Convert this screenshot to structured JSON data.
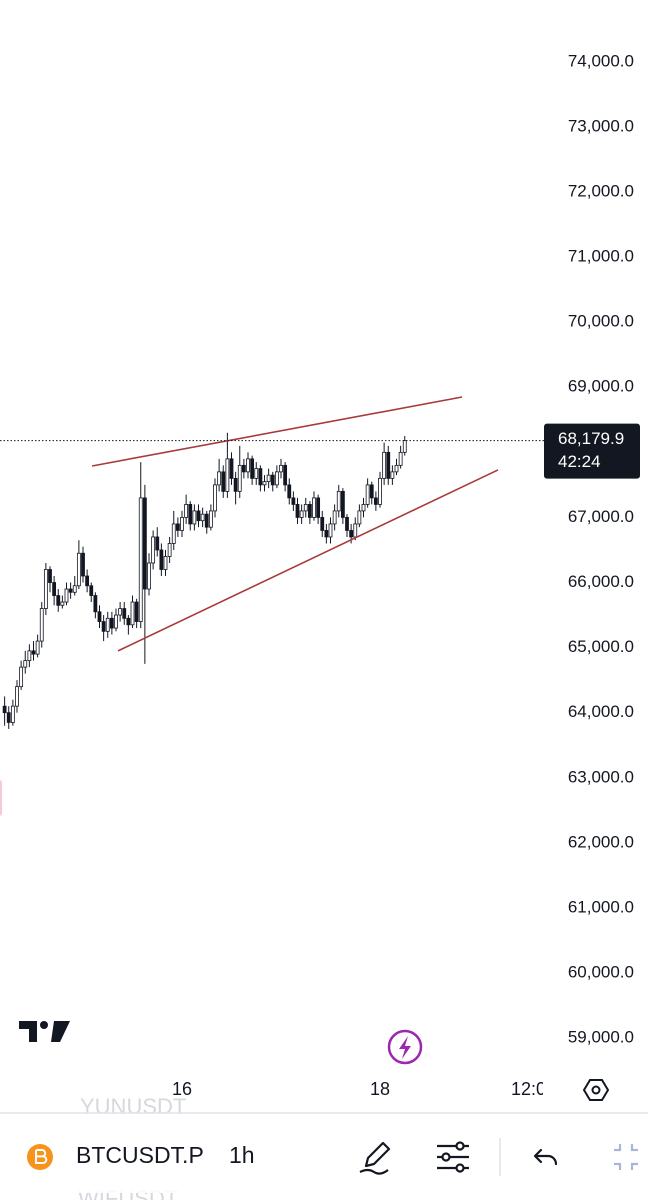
{
  "chart_data": {
    "type": "candlestick",
    "x": [
      -43,
      -42,
      -41,
      -40,
      -39,
      -38,
      -37,
      -36,
      -35,
      -34,
      -33,
      -32,
      -31,
      -30,
      -29,
      -28,
      -27,
      -26,
      -25,
      -24,
      -23,
      -22,
      -21,
      -20,
      -19,
      -18,
      -17,
      -16,
      -15,
      -14,
      -13,
      -12,
      -11,
      -10,
      -9,
      -8,
      -7,
      -6,
      -5,
      -4,
      -3,
      -2,
      -1,
      0,
      1,
      2,
      3,
      4,
      5,
      6,
      7,
      8,
      9,
      10,
      11,
      12,
      13,
      14,
      15,
      16,
      17,
      18,
      19,
      20,
      21,
      22,
      23,
      24,
      25,
      26,
      27,
      28,
      29,
      30,
      31,
      32,
      33,
      34,
      35,
      36,
      37,
      38,
      39,
      40,
      41,
      42,
      43,
      44,
      45,
      46,
      47,
      48,
      49,
      50,
      51,
      52,
      53,
      54
    ],
    "open": [
      64100,
      64000,
      63850,
      64100,
      64400,
      64700,
      64800,
      64950,
      64900,
      65100,
      65600,
      66200,
      66000,
      65800,
      65650,
      65700,
      65900,
      65850,
      65950,
      66450,
      66100,
      65950,
      65800,
      65550,
      65400,
      65250,
      65450,
      65300,
      65500,
      65600,
      65450,
      65350,
      65700,
      65400,
      67300,
      65900,
      66300,
      66700,
      66500,
      66200,
      66400,
      66600,
      66900,
      66800,
      67000,
      67200,
      66900,
      67100,
      66950,
      67050,
      66850,
      67100,
      67500,
      67700,
      67400,
      67900,
      67600,
      67400,
      67800,
      67700,
      67900,
      67600,
      67750,
      67500,
      67550,
      67650,
      67500,
      67700,
      67800,
      67500,
      67300,
      67200,
      67000,
      67100,
      67200,
      67000,
      67300,
      67000,
      66800,
      66700,
      66900,
      67100,
      67400,
      67000,
      66800,
      66700,
      66900,
      67100,
      67200,
      67500,
      67300,
      67200,
      67600,
      68000,
      67600,
      67700,
      67800,
      68000
    ],
    "high": [
      64250,
      64100,
      64200,
      64500,
      64800,
      64950,
      65050,
      65100,
      65200,
      65700,
      66300,
      66250,
      66100,
      65900,
      65800,
      66000,
      66000,
      66100,
      66650,
      66550,
      66200,
      66000,
      65850,
      65650,
      65500,
      65550,
      65550,
      65600,
      65700,
      65700,
      65500,
      65800,
      65750,
      67850,
      67500,
      66450,
      66800,
      66850,
      66600,
      66500,
      66700,
      67100,
      67000,
      67100,
      67350,
      67250,
      67200,
      67200,
      67150,
      67100,
      67200,
      67600,
      67900,
      67800,
      68300,
      68000,
      67700,
      68100,
      67900,
      68000,
      67950,
      67850,
      67800,
      67650,
      67750,
      67700,
      67800,
      67900,
      67850,
      67600,
      67400,
      67300,
      67200,
      67300,
      67250,
      67400,
      67350,
      67100,
      66900,
      67000,
      67200,
      67500,
      67450,
      67050,
      66900,
      67000,
      67200,
      67300,
      67600,
      67550,
      67400,
      67700,
      68150,
      68100,
      67800,
      67900,
      68100,
      68250
    ],
    "low": [
      63800,
      63750,
      63800,
      64000,
      64350,
      64600,
      64700,
      64800,
      64850,
      65000,
      65500,
      65850,
      65650,
      65550,
      65600,
      65650,
      65750,
      65800,
      65900,
      66000,
      65850,
      65700,
      65450,
      65300,
      65100,
      65150,
      65200,
      65250,
      65400,
      65350,
      65200,
      65300,
      65300,
      65300,
      64750,
      65800,
      66200,
      66400,
      66100,
      66100,
      66300,
      66500,
      66700,
      66700,
      66900,
      66800,
      66800,
      66850,
      66850,
      66750,
      66800,
      67000,
      67400,
      67300,
      67300,
      67500,
      67200,
      67300,
      67600,
      67600,
      67500,
      67500,
      67400,
      67400,
      67450,
      67400,
      67450,
      67600,
      67400,
      67200,
      67100,
      66900,
      66900,
      67000,
      66900,
      66950,
      66900,
      66700,
      66600,
      66600,
      66800,
      67000,
      66900,
      66700,
      66600,
      66650,
      66850,
      67000,
      67150,
      67200,
      67100,
      67150,
      67500,
      67500,
      67500,
      67650,
      67750,
      67950
    ],
    "close": [
      64000,
      63850,
      64100,
      64400,
      64700,
      64800,
      64950,
      64900,
      65100,
      65600,
      66200,
      66000,
      65800,
      65650,
      65700,
      65900,
      65850,
      65950,
      66450,
      66100,
      65950,
      65800,
      65550,
      65400,
      65250,
      65450,
      65300,
      65500,
      65600,
      65450,
      65350,
      65700,
      65400,
      67300,
      65900,
      66300,
      66700,
      66500,
      66200,
      66400,
      66600,
      66900,
      66800,
      67000,
      67200,
      66900,
      67100,
      66950,
      67050,
      66850,
      67100,
      67500,
      67700,
      67400,
      67900,
      67600,
      67400,
      67800,
      67700,
      67900,
      67600,
      67750,
      67500,
      67550,
      67650,
      67500,
      67700,
      67800,
      67500,
      67300,
      67200,
      67000,
      67100,
      67200,
      67000,
      67300,
      67000,
      66800,
      66700,
      66900,
      67100,
      67400,
      67000,
      66800,
      66700,
      66900,
      67100,
      67200,
      67500,
      67300,
      67200,
      67600,
      68000,
      67600,
      67700,
      67800,
      68000,
      68179.9
    ],
    "up_color": "#ffffff",
    "down_color": "#131722",
    "wick_color": "#131722",
    "xlim": [
      -44.12,
      88.24
    ],
    "xticks": [
      {
        "value": 0,
        "label": "16"
      },
      {
        "value": 48,
        "label": "18"
      },
      {
        "value": 84,
        "label": "12:0"
      }
    ],
    "ylim": [
      58510,
      74950
    ],
    "yticks": [
      {
        "value": 59000,
        "label": "59,000.0"
      },
      {
        "value": 60000,
        "label": "60,000.0"
      },
      {
        "value": 61000,
        "label": "61,000.0"
      },
      {
        "value": 62000,
        "label": "62,000.0"
      },
      {
        "value": 63000,
        "label": "63,000.0"
      },
      {
        "value": 64000,
        "label": "64,000.0"
      },
      {
        "value": 65000,
        "label": "65,000.0"
      },
      {
        "value": 66000,
        "label": "66,000.0"
      },
      {
        "value": 67000,
        "label": "67,000.0"
      },
      {
        "value": 68000,
        "label": "68,000.0"
      },
      {
        "value": 69000,
        "label": "69,000.0"
      },
      {
        "value": 70000,
        "label": "70,000.0"
      },
      {
        "value": 71000,
        "label": "71,000.0"
      },
      {
        "value": 72000,
        "label": "72,000.0"
      },
      {
        "value": 73000,
        "label": "73,000.0"
      },
      {
        "value": 74000,
        "label": "74,000.0"
      }
    ],
    "grid": false,
    "last_price_label": "68,179.9",
    "countdown": "42:24",
    "trendlines": [
      {
        "x": [
          -21.8,
          67.9
        ],
        "y": [
          67790,
          68850
        ],
        "color": "#a83a3a"
      },
      {
        "x": [
          -15.5,
          76.6
        ],
        "y": [
          64950,
          67730
        ],
        "color": "#a83a3a"
      }
    ]
  },
  "toolbar": {
    "symbol": "BTCUSDT.P",
    "interval": "1h"
  },
  "ghost_symbols": [
    "YUNUSDT",
    "WIFUSDT"
  ]
}
